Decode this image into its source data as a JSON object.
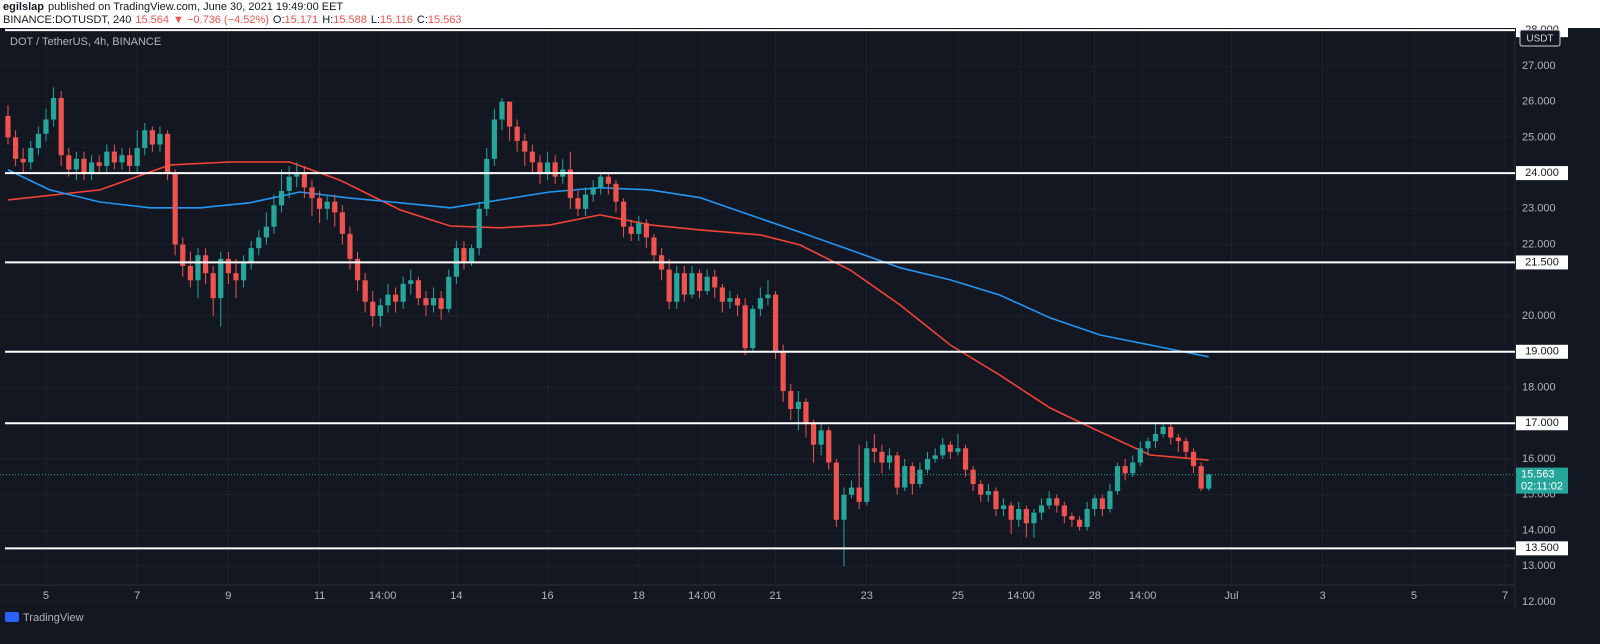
{
  "header": {
    "author": "egilslap",
    "published": "published on TradingView.com, June 30, 2021 19:49:00 EET",
    "symbol": "BINANCE:DOTUSDT, 240",
    "last": "15.564",
    "change": "▼ −0.736 (−4.52%)",
    "ohlc_labels": [
      "O:",
      "H:",
      "L:",
      "C:"
    ]
  },
  "chart_data": {
    "type": "candlestick",
    "title": "DOT / TetherUS, 4h, BINANCE",
    "currency": "USDT",
    "up_color": "#26a69a",
    "down_color": "#ef5350",
    "countdown": "02:11:02",
    "ohlc": [
      [
        25.6,
        25.9,
        24.8,
        25.0
      ],
      [
        25.0,
        25.2,
        24.2,
        24.4
      ],
      [
        24.4,
        24.7,
        24.0,
        24.3
      ],
      [
        24.3,
        24.9,
        24.1,
        24.7
      ],
      [
        24.7,
        25.3,
        24.5,
        25.1
      ],
      [
        25.1,
        25.8,
        24.9,
        25.5
      ],
      [
        25.5,
        26.4,
        25.3,
        26.1
      ],
      [
        26.1,
        26.3,
        24.2,
        24.5
      ],
      [
        24.5,
        24.7,
        23.9,
        24.1
      ],
      [
        24.1,
        24.6,
        23.8,
        24.4
      ],
      [
        24.4,
        24.6,
        23.8,
        24.0
      ],
      [
        24.0,
        24.5,
        23.8,
        24.3
      ],
      [
        24.3,
        24.5,
        24.0,
        24.2
      ],
      [
        24.2,
        24.8,
        24.0,
        24.6
      ],
      [
        24.6,
        24.8,
        24.1,
        24.3
      ],
      [
        24.3,
        24.7,
        24.1,
        24.5
      ],
      [
        24.5,
        24.7,
        24.0,
        24.2
      ],
      [
        24.2,
        25.2,
        24.0,
        24.7
      ],
      [
        24.7,
        25.4,
        24.5,
        25.2
      ],
      [
        25.2,
        25.3,
        24.6,
        24.8
      ],
      [
        24.8,
        25.3,
        24.6,
        25.1
      ],
      [
        25.1,
        25.2,
        23.8,
        24.0
      ],
      [
        24.0,
        24.1,
        21.7,
        22.0
      ],
      [
        22.0,
        22.2,
        21.1,
        21.4
      ],
      [
        21.4,
        21.8,
        20.8,
        21.0
      ],
      [
        21.0,
        21.9,
        20.5,
        21.7
      ],
      [
        21.7,
        21.9,
        20.9,
        21.2
      ],
      [
        21.2,
        21.4,
        20.0,
        20.5
      ],
      [
        20.5,
        21.8,
        19.7,
        21.6
      ],
      [
        21.6,
        21.8,
        20.9,
        21.2
      ],
      [
        21.2,
        21.6,
        20.5,
        21.0
      ],
      [
        21.0,
        21.7,
        20.8,
        21.5
      ],
      [
        21.5,
        22.1,
        21.3,
        21.9
      ],
      [
        21.9,
        22.4,
        21.7,
        22.2
      ],
      [
        22.2,
        22.9,
        22.0,
        22.5
      ],
      [
        22.5,
        23.4,
        22.3,
        23.1
      ],
      [
        23.1,
        24.1,
        22.9,
        23.5
      ],
      [
        23.5,
        24.2,
        23.3,
        23.9
      ],
      [
        23.9,
        24.3,
        23.6,
        24.0
      ],
      [
        24.0,
        24.2,
        23.3,
        23.6
      ],
      [
        23.6,
        23.8,
        22.8,
        23.3
      ],
      [
        23.3,
        23.5,
        22.6,
        23.0
      ],
      [
        23.0,
        23.4,
        22.7,
        23.2
      ],
      [
        23.2,
        23.4,
        22.5,
        22.9
      ],
      [
        22.9,
        23.1,
        22.0,
        22.3
      ],
      [
        22.3,
        22.5,
        21.3,
        21.6
      ],
      [
        21.6,
        21.8,
        20.7,
        21.0
      ],
      [
        21.0,
        21.2,
        20.1,
        20.4
      ],
      [
        20.4,
        20.7,
        19.7,
        20.0
      ],
      [
        20.0,
        20.5,
        19.7,
        20.3
      ],
      [
        20.3,
        20.9,
        20.1,
        20.6
      ],
      [
        20.6,
        20.8,
        20.1,
        20.4
      ],
      [
        20.4,
        21.1,
        20.2,
        20.9
      ],
      [
        20.9,
        21.3,
        20.6,
        21.0
      ],
      [
        21.0,
        21.1,
        20.3,
        20.5
      ],
      [
        20.5,
        20.7,
        20.0,
        20.3
      ],
      [
        20.3,
        20.8,
        20.1,
        20.5
      ],
      [
        20.5,
        20.7,
        19.9,
        20.2
      ],
      [
        20.2,
        21.3,
        20.1,
        21.1
      ],
      [
        21.1,
        22.1,
        20.9,
        21.9
      ],
      [
        21.9,
        22.1,
        21.3,
        21.5
      ],
      [
        21.5,
        22.0,
        21.4,
        21.9
      ],
      [
        21.9,
        23.2,
        21.7,
        23.0
      ],
      [
        23.0,
        24.7,
        22.8,
        24.4
      ],
      [
        24.4,
        25.8,
        24.2,
        25.5
      ],
      [
        25.5,
        26.1,
        25.2,
        26.0
      ],
      [
        26.0,
        26.0,
        24.9,
        25.3
      ],
      [
        25.3,
        25.5,
        24.6,
        24.9
      ],
      [
        24.9,
        25.1,
        24.2,
        24.6
      ],
      [
        24.6,
        24.8,
        24.0,
        24.3
      ],
      [
        24.3,
        24.5,
        23.7,
        24.0
      ],
      [
        24.0,
        24.6,
        23.8,
        24.3
      ],
      [
        24.3,
        24.5,
        23.7,
        23.9
      ],
      [
        23.9,
        24.4,
        23.7,
        24.1
      ],
      [
        24.1,
        24.6,
        23.0,
        23.3
      ],
      [
        23.3,
        23.5,
        22.8,
        23.0
      ],
      [
        23.0,
        23.6,
        22.8,
        23.4
      ],
      [
        23.4,
        23.8,
        23.2,
        23.6
      ],
      [
        23.6,
        24.0,
        23.4,
        23.9
      ],
      [
        23.9,
        24.0,
        23.4,
        23.7
      ],
      [
        23.7,
        23.8,
        22.9,
        23.2
      ],
      [
        23.2,
        23.3,
        22.2,
        22.5
      ],
      [
        22.5,
        22.7,
        22.1,
        22.3
      ],
      [
        22.3,
        22.8,
        22.1,
        22.6
      ],
      [
        22.6,
        22.7,
        21.9,
        22.2
      ],
      [
        22.2,
        22.3,
        21.5,
        21.7
      ],
      [
        21.7,
        21.9,
        21.0,
        21.3
      ],
      [
        21.3,
        21.6,
        20.2,
        20.4
      ],
      [
        20.4,
        21.4,
        20.2,
        21.2
      ],
      [
        21.2,
        21.4,
        20.4,
        20.6
      ],
      [
        20.6,
        21.4,
        20.5,
        21.2
      ],
      [
        21.2,
        21.3,
        20.5,
        20.7
      ],
      [
        20.7,
        21.3,
        20.6,
        21.1
      ],
      [
        21.1,
        21.3,
        20.5,
        20.8
      ],
      [
        20.8,
        20.9,
        20.1,
        20.4
      ],
      [
        20.4,
        20.7,
        20.2,
        20.5
      ],
      [
        20.5,
        20.6,
        20.0,
        20.3
      ],
      [
        20.3,
        20.5,
        18.9,
        19.1
      ],
      [
        19.1,
        20.3,
        19.0,
        20.2
      ],
      [
        20.2,
        20.8,
        20.0,
        20.5
      ],
      [
        20.5,
        21.0,
        20.3,
        20.6
      ],
      [
        20.6,
        20.7,
        18.8,
        19.0
      ],
      [
        19.0,
        19.2,
        17.6,
        17.9
      ],
      [
        17.9,
        18.1,
        17.1,
        17.4
      ],
      [
        17.4,
        17.9,
        16.8,
        17.6
      ],
      [
        17.6,
        17.7,
        16.6,
        17.0
      ],
      [
        17.0,
        17.1,
        15.9,
        16.4
      ],
      [
        16.4,
        17.0,
        16.1,
        16.8
      ],
      [
        16.8,
        16.9,
        15.7,
        15.9
      ],
      [
        15.9,
        16.0,
        14.1,
        14.3
      ],
      [
        14.3,
        15.2,
        13.0,
        15.0
      ],
      [
        15.0,
        15.4,
        14.9,
        15.2
      ],
      [
        15.2,
        16.4,
        14.6,
        14.8
      ],
      [
        14.8,
        16.5,
        14.7,
        16.3
      ],
      [
        16.3,
        16.7,
        15.9,
        16.2
      ],
      [
        16.2,
        16.4,
        15.6,
        15.9
      ],
      [
        15.9,
        16.3,
        15.7,
        16.1
      ],
      [
        16.1,
        16.2,
        15.0,
        15.2
      ],
      [
        15.2,
        16.0,
        15.1,
        15.8
      ],
      [
        15.8,
        15.9,
        15.0,
        15.3
      ],
      [
        15.3,
        15.9,
        15.2,
        15.7
      ],
      [
        15.7,
        16.2,
        15.6,
        16.0
      ],
      [
        16.0,
        16.3,
        15.9,
        16.1
      ],
      [
        16.1,
        16.6,
        16.0,
        16.4
      ],
      [
        16.4,
        16.5,
        16.0,
        16.2
      ],
      [
        16.2,
        16.7,
        16.1,
        16.3
      ],
      [
        16.3,
        16.4,
        15.5,
        15.7
      ],
      [
        15.7,
        15.8,
        15.1,
        15.3
      ],
      [
        15.3,
        15.4,
        14.8,
        15.0
      ],
      [
        15.0,
        15.3,
        14.8,
        15.1
      ],
      [
        15.1,
        15.2,
        14.4,
        14.6
      ],
      [
        14.6,
        14.9,
        14.4,
        14.7
      ],
      [
        14.7,
        14.8,
        13.9,
        14.3
      ],
      [
        14.3,
        14.8,
        14.1,
        14.6
      ],
      [
        14.6,
        14.7,
        13.8,
        14.2
      ],
      [
        14.2,
        14.6,
        13.8,
        14.5
      ],
      [
        14.5,
        14.9,
        14.3,
        14.7
      ],
      [
        14.7,
        15.1,
        14.6,
        14.9
      ],
      [
        14.9,
        15.0,
        14.5,
        14.7
      ],
      [
        14.7,
        14.8,
        14.2,
        14.4
      ],
      [
        14.4,
        14.5,
        14.1,
        14.3
      ],
      [
        14.3,
        14.4,
        14.0,
        14.1
      ],
      [
        14.1,
        14.8,
        14.0,
        14.6
      ],
      [
        14.6,
        15.0,
        14.4,
        14.9
      ],
      [
        14.9,
        15.0,
        14.4,
        14.6
      ],
      [
        14.6,
        15.3,
        14.5,
        15.1
      ],
      [
        15.1,
        15.9,
        15.0,
        15.8
      ],
      [
        15.8,
        16.0,
        15.4,
        15.6
      ],
      [
        15.6,
        16.1,
        15.5,
        15.9
      ],
      [
        15.9,
        16.5,
        15.8,
        16.3
      ],
      [
        16.3,
        16.6,
        16.1,
        16.5
      ],
      [
        16.5,
        17.0,
        16.3,
        16.7
      ],
      [
        16.7,
        17.0,
        16.6,
        16.9
      ],
      [
        16.9,
        17.0,
        16.4,
        16.6
      ],
      [
        16.6,
        16.7,
        16.2,
        16.5
      ],
      [
        16.5,
        16.6,
        16.0,
        16.2
      ],
      [
        16.2,
        16.3,
        15.6,
        15.8
      ],
      [
        15.8,
        15.9,
        15.1,
        15.171
      ],
      [
        15.171,
        15.588,
        15.116,
        15.563
      ]
    ],
    "xlim": [
      -1.05,
      198.3
    ],
    "xticks": [
      {
        "value": 5,
        "label": "5"
      },
      {
        "value": 17,
        "label": "7"
      },
      {
        "value": 29,
        "label": "9"
      },
      {
        "value": 41,
        "label": "11"
      },
      {
        "value": 49.3,
        "label": "14:00"
      },
      {
        "value": 59,
        "label": "14"
      },
      {
        "value": 71,
        "label": "16"
      },
      {
        "value": 83,
        "label": "18"
      },
      {
        "value": 91.3,
        "label": "14:00"
      },
      {
        "value": 101,
        "label": "21"
      },
      {
        "value": 113,
        "label": "23"
      },
      {
        "value": 125,
        "label": "25"
      },
      {
        "value": 133.3,
        "label": "14:00"
      },
      {
        "value": 143,
        "label": "28"
      },
      {
        "value": 149.3,
        "label": "14:00"
      },
      {
        "value": 161,
        "label": "Jul"
      },
      {
        "value": 173,
        "label": "3"
      },
      {
        "value": 185,
        "label": "5"
      },
      {
        "value": 197,
        "label": "7"
      }
    ],
    "ylim": [
      11.83,
      28.06
    ],
    "yticks": [
      {
        "value": 27,
        "label": "27.000"
      },
      {
        "value": 26,
        "label": "26.000"
      },
      {
        "value": 25,
        "label": "25.000"
      },
      {
        "value": 23,
        "label": "23.000"
      },
      {
        "value": 22,
        "label": "22.000"
      },
      {
        "value": 20,
        "label": "20.000"
      },
      {
        "value": 18,
        "label": "18.000"
      },
      {
        "value": 16,
        "label": "16.000"
      },
      {
        "value": 15,
        "label": "15.000"
      },
      {
        "value": 14,
        "label": "14.000"
      },
      {
        "value": 13,
        "label": "13.000"
      },
      {
        "value": 12,
        "label": "12.000"
      }
    ],
    "grid": true,
    "levels": [
      {
        "value": 28,
        "label": "28.000"
      },
      {
        "value": 24,
        "label": "24.000"
      },
      {
        "value": 21.5,
        "label": "21.500"
      },
      {
        "value": 19,
        "label": "19.000"
      },
      {
        "value": 17,
        "label": "17.000"
      },
      {
        "value": 13.5,
        "label": "13.500"
      }
    ],
    "moving_averages": [
      {
        "color": "#f44336",
        "x": [
          0,
          12.1,
          21.3,
          29.2,
          37.1,
          43.7,
          51.6,
          58.2,
          64.7,
          71.3,
          77.9,
          84.5,
          91.1,
          99,
          104.2,
          110.8,
          117.4,
          124,
          130.5,
          137.1,
          143.7,
          150.3,
          158
        ],
        "values": [
          23.25,
          23.53,
          24.23,
          24.31,
          24.31,
          23.8,
          22.97,
          22.52,
          22.47,
          22.55,
          22.83,
          22.55,
          22.41,
          22.27,
          21.99,
          21.29,
          20.31,
          19.19,
          18.35,
          17.43,
          16.76,
          16.11,
          15.97
        ]
      },
      {
        "color": "#2196f3",
        "x": [
          0,
          5.5,
          12.1,
          18.7,
          25.3,
          31.8,
          38.4,
          45,
          51.6,
          58.2,
          64.7,
          71.3,
          77.9,
          84.5,
          91.1,
          97.6,
          104.2,
          110.8,
          117.4,
          124,
          130.5,
          137.1,
          143.7,
          150.3,
          158
        ],
        "values": [
          24.09,
          23.53,
          23.19,
          23.03,
          23.03,
          23.17,
          23.47,
          23.3,
          23.17,
          23.03,
          23.25,
          23.47,
          23.59,
          23.53,
          23.31,
          22.83,
          22.35,
          21.85,
          21.35,
          21.01,
          20.59,
          19.95,
          19.47,
          19.19,
          18.86
        ]
      }
    ]
  },
  "footer": {
    "brand": "TradingView"
  }
}
